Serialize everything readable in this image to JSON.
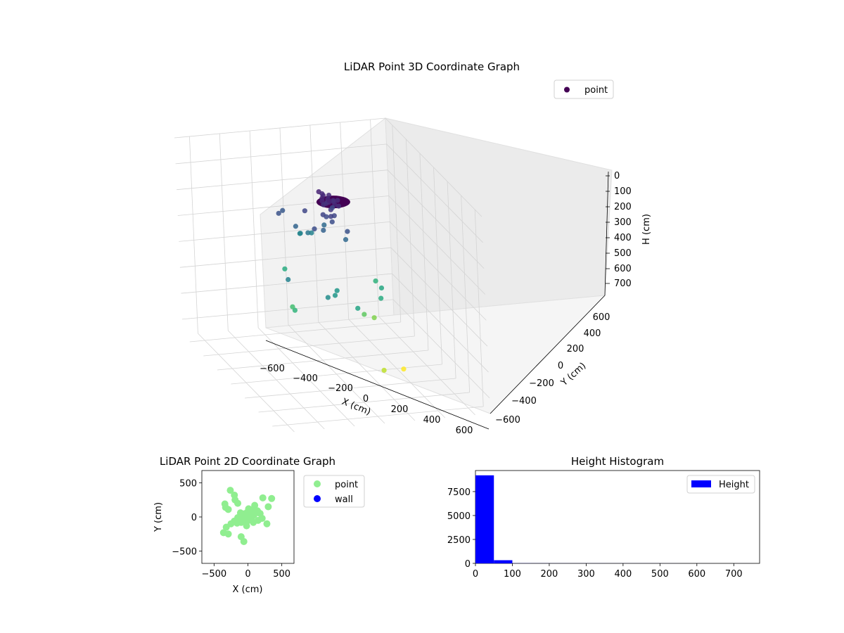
{
  "figure": {
    "background": "#ffffff"
  },
  "chart_data": [
    {
      "type": "scatter",
      "projection": "3d",
      "title": "LiDAR Point 3D Coordinate Graph",
      "xlabel": "X (cm)",
      "ylabel": "Y (cm)",
      "zlabel": "H (cm)",
      "xlim": [
        -700,
        700
      ],
      "ylim": [
        -700,
        700
      ],
      "zlim": [
        0,
        760
      ],
      "z_inverted": true,
      "x_ticks": [
        "−600",
        "−400",
        "−200",
        "0",
        "200",
        "400",
        "600"
      ],
      "y_ticks": [
        "−600",
        "−400",
        "−200",
        "0",
        "200",
        "400",
        "600"
      ],
      "z_ticks": [
        "0",
        "100",
        "200",
        "300",
        "400",
        "500",
        "600",
        "700"
      ],
      "grid": true,
      "legend": {
        "position": "top-right",
        "entries": [
          {
            "label": "point",
            "color": "#440154"
          }
        ]
      },
      "colormap": "viridis",
      "series": [
        {
          "name": "point",
          "points": [
            [
              -40,
              20,
              80
            ],
            [
              -20,
              0,
              90
            ],
            [
              0,
              20,
              100
            ],
            [
              20,
              -20,
              90
            ],
            [
              -60,
              40,
              70
            ],
            [
              40,
              20,
              85
            ],
            [
              -30,
              -40,
              100
            ],
            [
              10,
              50,
              75
            ],
            [
              60,
              -10,
              90
            ],
            [
              -50,
              -10,
              110
            ],
            [
              30,
              60,
              80
            ],
            [
              -10,
              -60,
              95
            ],
            [
              70,
              30,
              70
            ],
            [
              -80,
              10,
              85
            ],
            [
              20,
              0,
              120
            ],
            [
              -20,
              30,
              110
            ],
            [
              50,
              -40,
              100
            ],
            [
              -70,
              -30,
              90
            ],
            [
              0,
              -30,
              150
            ],
            [
              10,
              -10,
              170
            ],
            [
              -30,
              10,
              160
            ],
            [
              40,
              10,
              140
            ],
            [
              -10,
              40,
              145
            ],
            [
              -100,
              120,
              150
            ],
            [
              120,
              -60,
              180
            ],
            [
              -140,
              -80,
              160
            ],
            [
              80,
              140,
              170
            ],
            [
              -60,
              20,
              220
            ],
            [
              20,
              -90,
              240
            ],
            [
              -180,
              150,
              230
            ],
            [
              -250,
              40,
              280
            ],
            [
              -320,
              60,
              300
            ],
            [
              -230,
              -60,
              250
            ],
            [
              -380,
              -40,
              320
            ],
            [
              -420,
              20,
              330
            ],
            [
              -300,
              180,
              200
            ],
            [
              -200,
              250,
              180
            ],
            [
              200,
              60,
              380
            ],
            [
              260,
              100,
              380
            ],
            [
              320,
              -20,
              420
            ],
            [
              380,
              200,
              350
            ],
            [
              50,
              -300,
              430
            ],
            [
              150,
              -250,
              440
            ],
            [
              -150,
              -350,
              460
            ],
            [
              -350,
              160,
              440
            ],
            [
              100,
              300,
              470
            ],
            [
              0,
              -200,
              540
            ],
            [
              -80,
              -300,
              580
            ],
            [
              150,
              -380,
              720
            ],
            [
              380,
              -150,
              650
            ],
            [
              -50,
              250,
              500
            ],
            [
              200,
              380,
              320
            ]
          ]
        }
      ]
    },
    {
      "type": "scatter",
      "title": "LiDAR Point 2D Coordinate Graph",
      "xlabel": "X (cm)",
      "ylabel": "Y (cm)",
      "xlim": [
        -680,
        680
      ],
      "ylim": [
        -680,
        680
      ],
      "x_ticks": [
        -500,
        0,
        500
      ],
      "y_ticks": [
        -500,
        0,
        500
      ],
      "legend": {
        "position": "outside-right",
        "entries": [
          {
            "label": "point",
            "color": "#90ee90"
          },
          {
            "label": "wall",
            "color": "#0000ff"
          }
        ]
      },
      "series": [
        {
          "name": "point",
          "color": "#90ee90",
          "points": [
            [
              -260,
              390
            ],
            [
              -200,
              320
            ],
            [
              -190,
              250
            ],
            [
              -150,
              200
            ],
            [
              -340,
              190
            ],
            [
              -330,
              140
            ],
            [
              -290,
              110
            ],
            [
              220,
              280
            ],
            [
              350,
              270
            ],
            [
              300,
              150
            ],
            [
              100,
              170
            ],
            [
              140,
              90
            ],
            [
              180,
              50
            ],
            [
              210,
              -20
            ],
            [
              280,
              -100
            ],
            [
              -110,
              60
            ],
            [
              -80,
              20
            ],
            [
              -40,
              50
            ],
            [
              0,
              80
            ],
            [
              30,
              30
            ],
            [
              60,
              0
            ],
            [
              40,
              -40
            ],
            [
              -10,
              -60
            ],
            [
              -60,
              -30
            ],
            [
              -100,
              -80
            ],
            [
              -150,
              -10
            ],
            [
              10,
              120
            ],
            [
              70,
              110
            ],
            [
              -30,
              10
            ],
            [
              50,
              60
            ],
            [
              -200,
              -60
            ],
            [
              -250,
              -100
            ],
            [
              -320,
              -150
            ],
            [
              -360,
              -230
            ],
            [
              -290,
              -250
            ],
            [
              -100,
              -290
            ],
            [
              -60,
              -360
            ],
            [
              -20,
              -130
            ],
            [
              80,
              -80
            ],
            [
              150,
              -50
            ],
            [
              -160,
              -90
            ],
            [
              20,
              -20
            ],
            [
              -20,
              40
            ],
            [
              90,
              30
            ]
          ]
        },
        {
          "name": "wall",
          "color": "#0000ff",
          "points": []
        }
      ]
    },
    {
      "type": "bar",
      "subtype": "histogram",
      "title": "Height Histogram",
      "xlabel": "",
      "ylabel": "",
      "xlim": [
        0,
        770
      ],
      "ylim": [
        0,
        9700
      ],
      "x_ticks": [
        0,
        100,
        200,
        300,
        400,
        500,
        600,
        700
      ],
      "y_ticks": [
        0,
        2500,
        5000,
        7500
      ],
      "bin_width": 50,
      "bins": [
        0,
        50,
        100,
        150,
        200,
        250,
        300,
        350,
        400,
        450,
        500,
        550,
        600,
        650,
        700
      ],
      "values": [
        9200,
        330,
        10,
        6,
        5,
        4,
        4,
        3,
        3,
        3,
        2,
        1,
        1,
        0,
        1
      ],
      "legend": {
        "position": "top-right",
        "entries": [
          {
            "label": "Height",
            "color": "#0000ff"
          }
        ]
      },
      "series": [
        {
          "name": "Height",
          "color": "#0000ff"
        }
      ]
    }
  ]
}
